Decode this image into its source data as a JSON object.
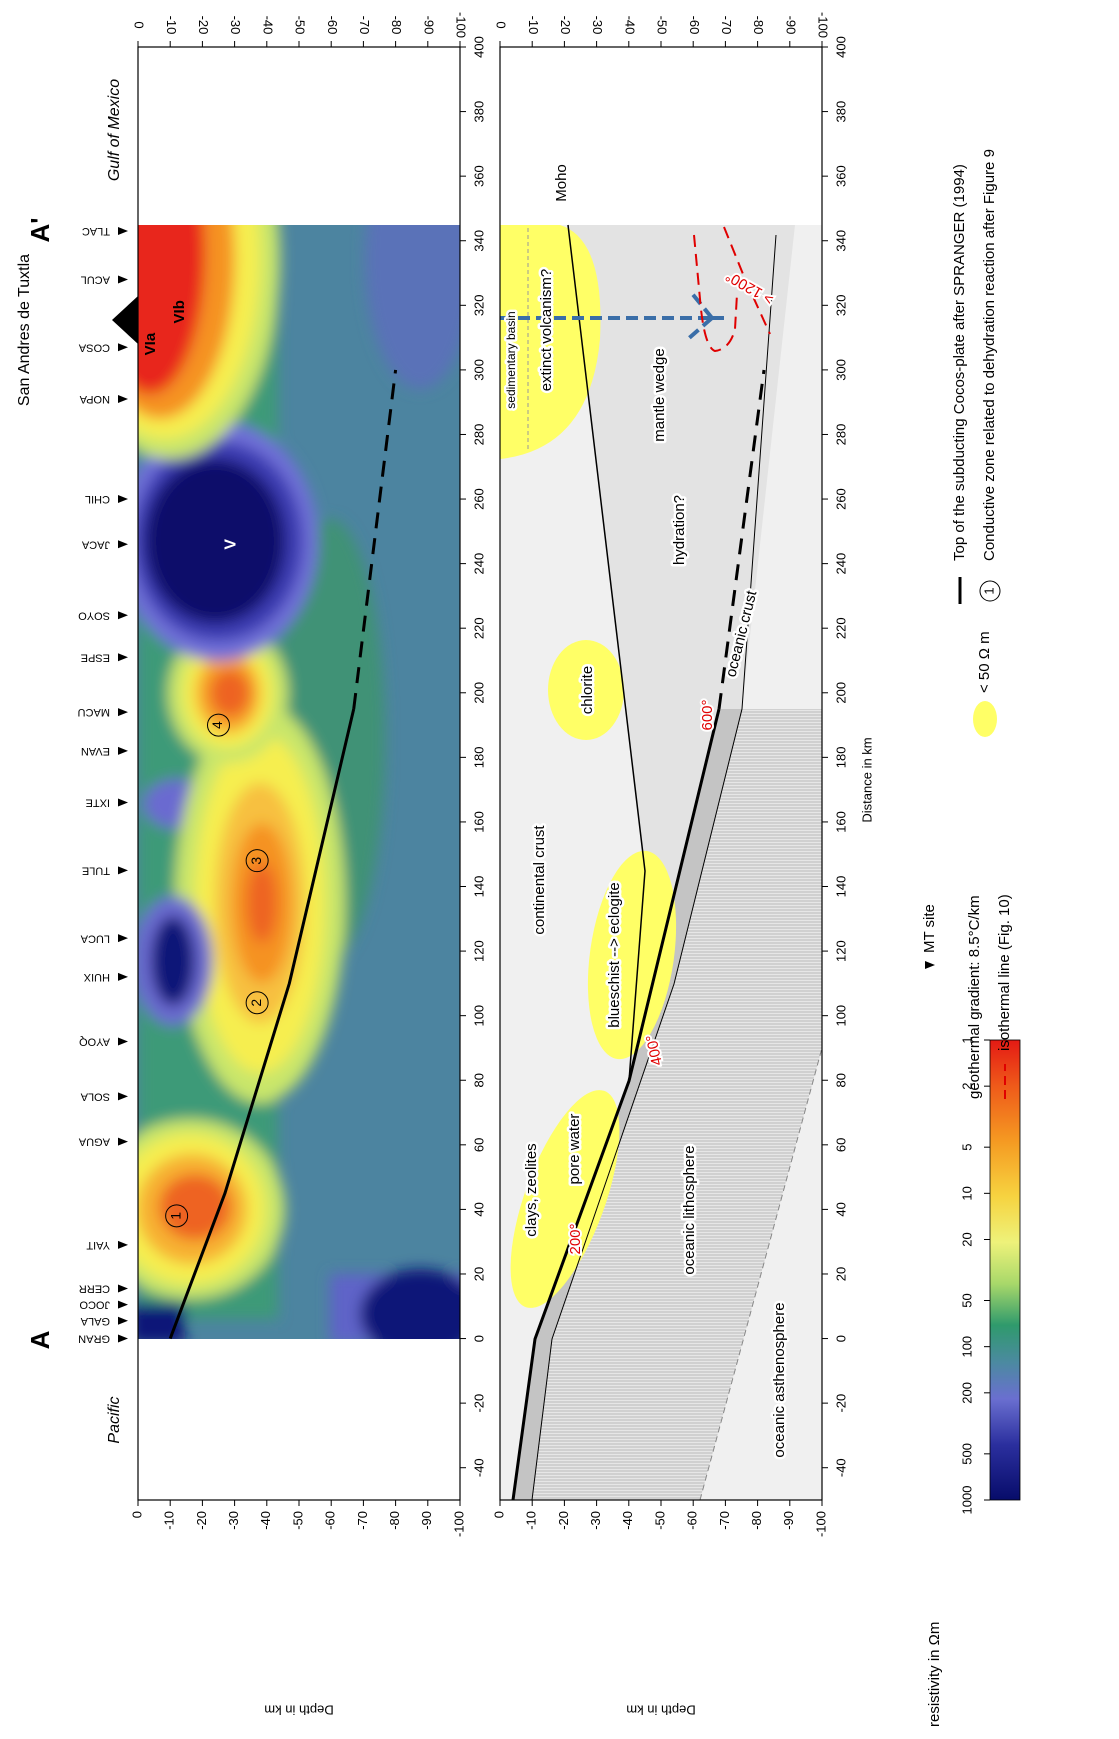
{
  "header": {
    "location": "San Andres de Tuxtla",
    "start": "A",
    "end": "A'",
    "left_region": "Pacific",
    "right_region": "Gulf of Mexico"
  },
  "axes": {
    "x_label": "Distance in km",
    "y_label": "Depth in km",
    "xlim": [
      -50,
      400
    ],
    "xticks": [
      -40,
      -20,
      0,
      20,
      40,
      60,
      80,
      100,
      120,
      140,
      160,
      180,
      200,
      220,
      240,
      260,
      280,
      300,
      320,
      340,
      360,
      380,
      400
    ],
    "ylim": [
      -100,
      0
    ],
    "yticks": [
      0,
      -10,
      -20,
      -30,
      -40,
      -50,
      -60,
      -70,
      -80,
      -90,
      -100
    ]
  },
  "sites": {
    "names": [
      "GRAN",
      "GALA",
      "JOCO",
      "CERR",
      "YAIT",
      "AGUA",
      "SOLA",
      "AYOQ",
      "HUIX",
      "LUCA",
      "TULE",
      "IXTE",
      "EVAN",
      "MACU",
      "ESPE",
      "SOYO",
      "JACA",
      "CHIL",
      "NOPA",
      "COSA",
      "ACUL",
      "TLAC"
    ],
    "x": [
      0,
      5.5,
      10.5,
      15.5,
      29,
      61,
      75,
      92,
      112,
      124,
      145,
      166,
      182,
      194,
      211,
      224,
      246,
      260,
      291,
      307,
      328,
      343
    ]
  },
  "model": {
    "labels": [
      "1",
      "2",
      "3",
      "4",
      "V",
      "VIa",
      "VIb"
    ],
    "slab": {
      "x": [
        0,
        45,
        110,
        195
      ],
      "depth": [
        -10,
        -27,
        -47,
        -67
      ]
    },
    "slab_projected": {
      "x": [
        195,
        300
      ],
      "depth": [
        -67,
        -80
      ]
    }
  },
  "interpretation": {
    "labels": [
      "sedimentary basin",
      "extinct volcanism?",
      "Moho",
      "mantle wedge",
      "hydration?",
      "chlorite",
      "continental crust",
      "blueschist --> eclogite",
      "clays, zeolites",
      "pore water",
      "oceanic lithosphere",
      "oceanic asthenosphere",
      "oceanic crust"
    ],
    "isotherms": [
      "200°",
      "400°",
      "600°",
      "> 1200°"
    ]
  },
  "legend": {
    "colorbar_title": "resistivity in Ωm",
    "colorbar_ticks": [
      1000,
      500,
      200,
      100,
      50,
      20,
      10,
      5,
      2,
      1
    ],
    "mt_site": "MT site",
    "gradient": "geothermal gradient: 8.5°C/km",
    "isotherm": "isothermal line (Fig. 10)",
    "conductive": "< 50 Ω m",
    "plate": "Top of the subducting Cocos-plate after SPRANGER (1994)",
    "zone_symbol": "1",
    "zone": "Conductive zone related to dehydration reaction after Figure 9"
  }
}
